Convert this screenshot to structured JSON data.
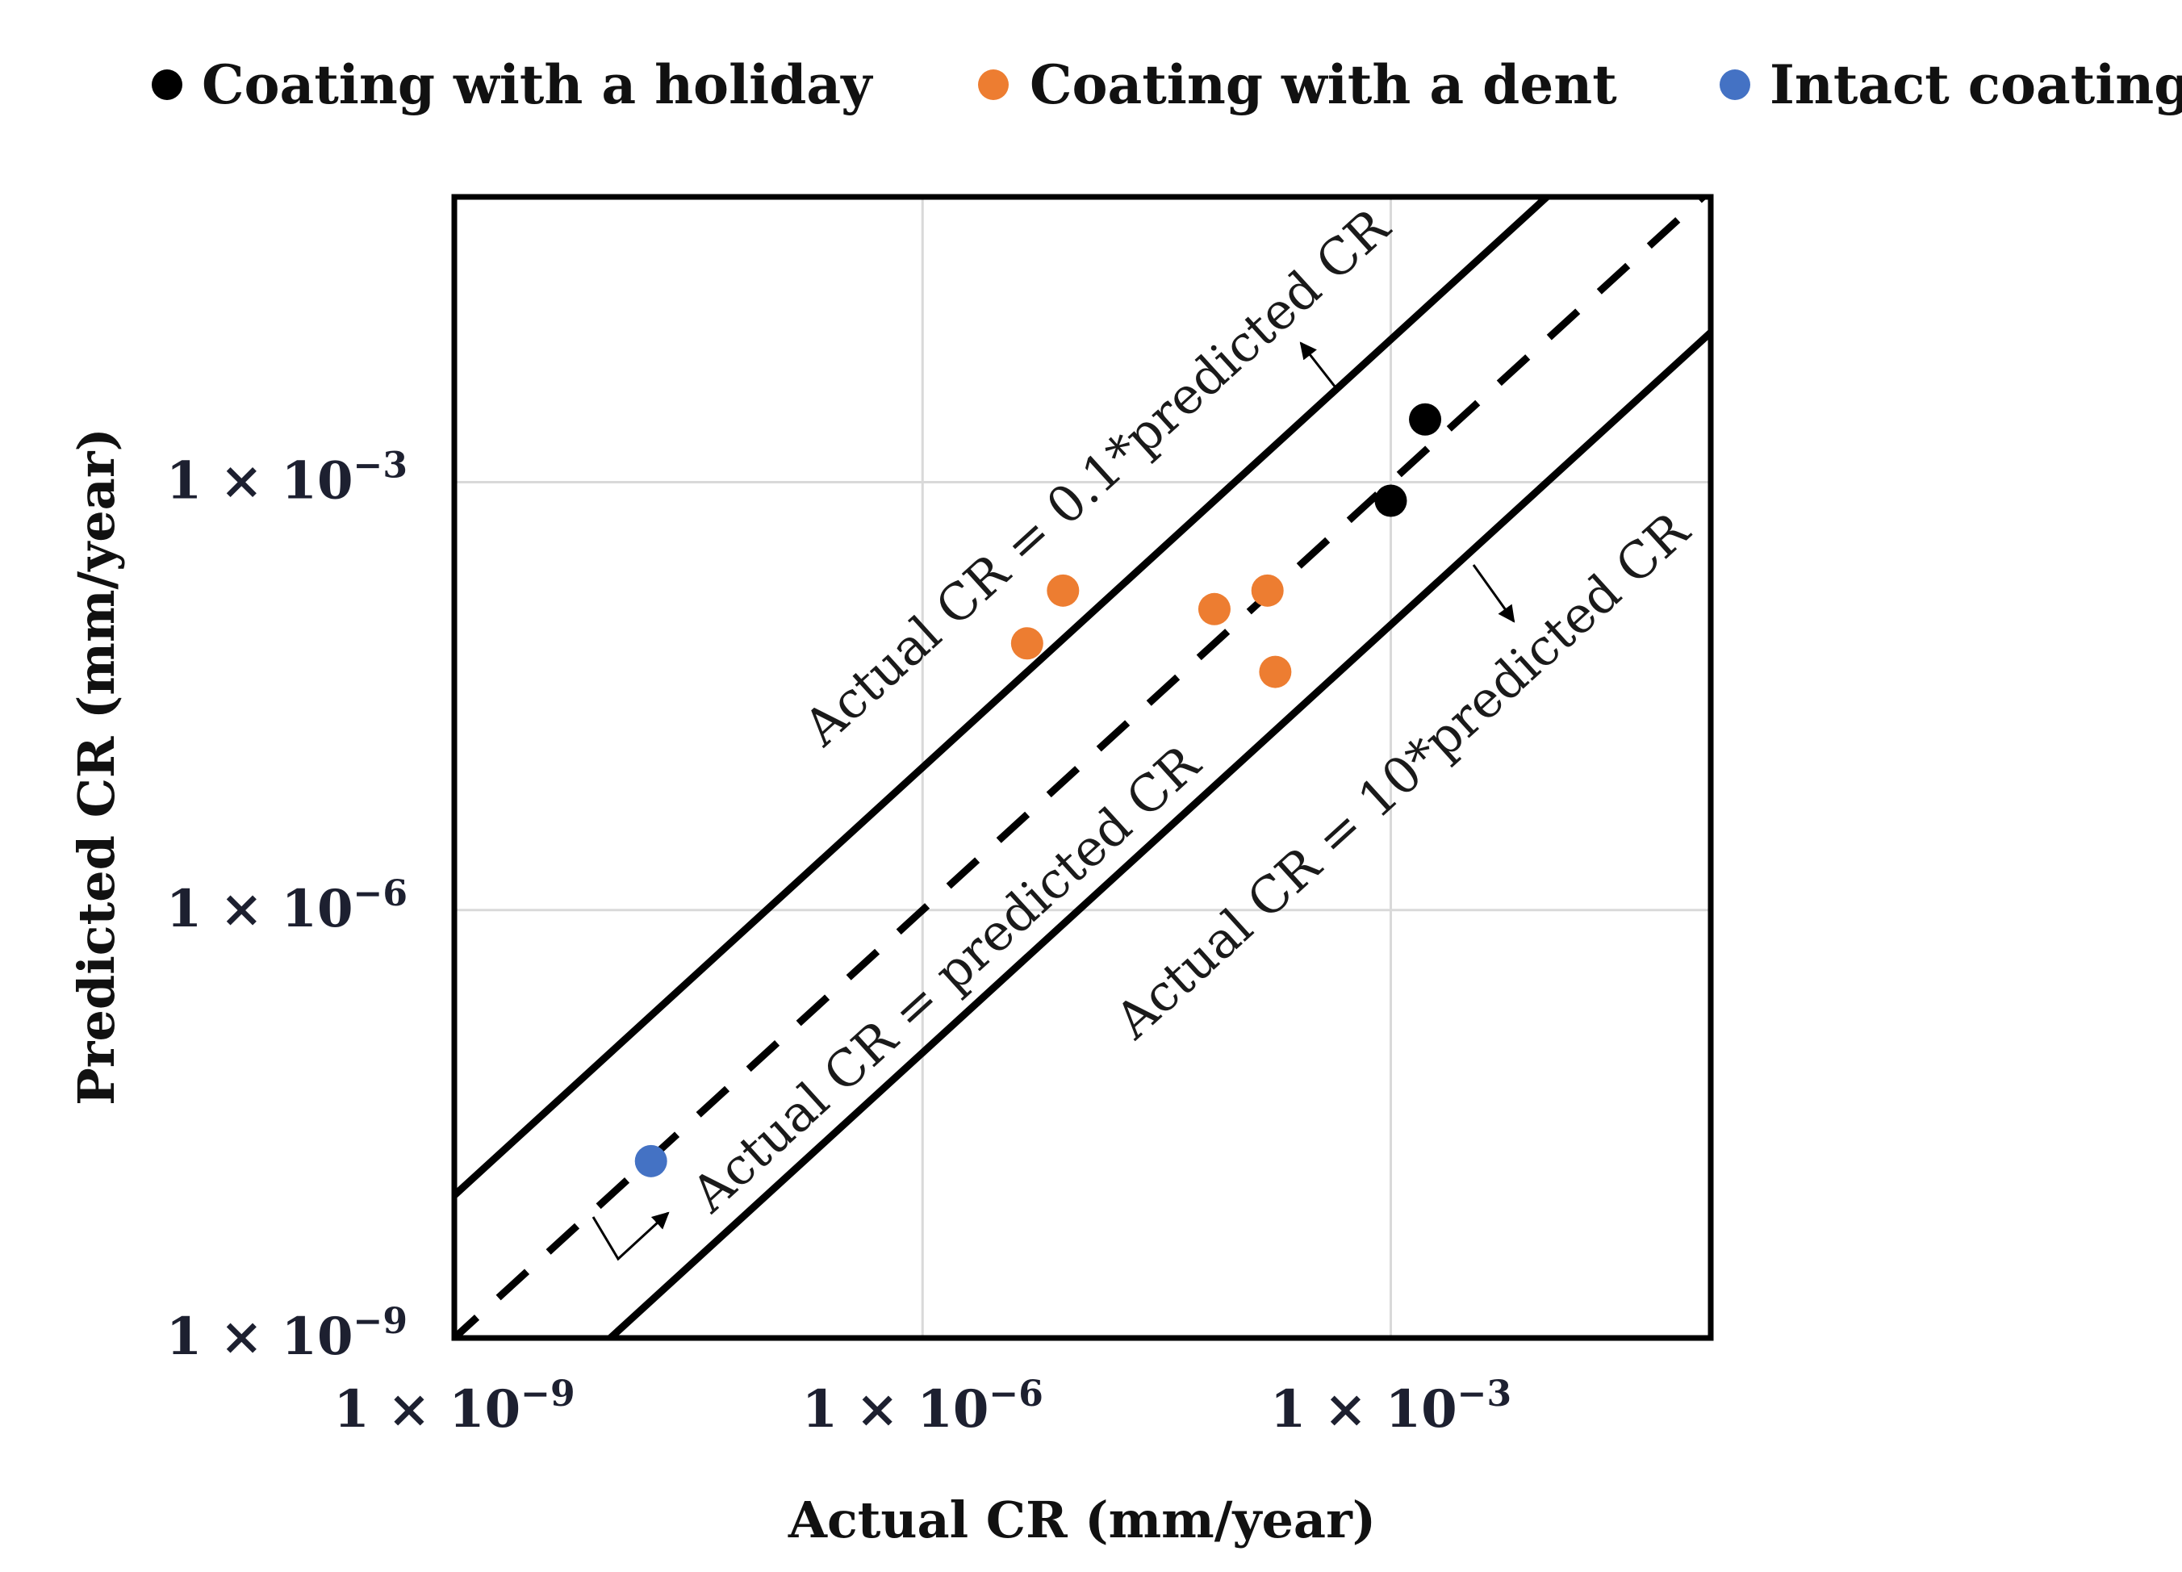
{
  "chart_data": {
    "type": "scatter",
    "title": "",
    "xlabel": "Actual CR (mm/year)",
    "ylabel": "Predicted CR (mm/year)",
    "xscale": "log",
    "yscale": "log",
    "xlim_exp": [
      -9,
      -0.95
    ],
    "ylim_exp": [
      -9,
      -1
    ],
    "xticks": [
      {
        "exp": -9,
        "mantissa": "1",
        "times": "×",
        "base": "10",
        "sup": "−9"
      },
      {
        "exp": -6,
        "mantissa": "1",
        "times": "×",
        "base": "10",
        "sup": "−6"
      },
      {
        "exp": -3,
        "mantissa": "1",
        "times": "×",
        "base": "10",
        "sup": "−3"
      }
    ],
    "yticks": [
      {
        "exp": -9,
        "mantissa": "1",
        "times": "×",
        "base": "10",
        "sup": "−9"
      },
      {
        "exp": -6,
        "mantissa": "1",
        "times": "×",
        "base": "10",
        "sup": "−6"
      },
      {
        "exp": -3,
        "mantissa": "1",
        "times": "×",
        "base": "10",
        "sup": "−3"
      }
    ],
    "grid": true,
    "legend_position": "top",
    "series": [
      {
        "name": "Coating with a holiday",
        "color": "#000000",
        "points": [
          {
            "x_exp": -3.0,
            "y_exp": -3.13
          },
          {
            "x_exp": -2.78,
            "y_exp": -2.56
          }
        ]
      },
      {
        "name": "Coating with a dent",
        "color": "#ed7d31",
        "points": [
          {
            "x_exp": -5.33,
            "y_exp": -4.13
          },
          {
            "x_exp": -5.1,
            "y_exp": -3.76
          },
          {
            "x_exp": -4.13,
            "y_exp": -3.89
          },
          {
            "x_exp": -3.79,
            "y_exp": -3.76
          },
          {
            "x_exp": -3.74,
            "y_exp": -4.33
          }
        ]
      },
      {
        "name": "Intact coating",
        "color": "#4472c4",
        "points": [
          {
            "x_exp": -7.74,
            "y_exp": -7.76
          }
        ]
      }
    ],
    "reference_lines": [
      {
        "name": "upper-bound",
        "label": "Actual CR = 0.1*predicted CR",
        "style": "solid",
        "offset_exp": 1
      },
      {
        "name": "parity",
        "label": "Actual CR = predicted CR",
        "style": "dashed",
        "offset_exp": 0
      },
      {
        "name": "lower-bound",
        "label": "Actual CR = 10*predicted CR",
        "style": "solid",
        "offset_exp": -1
      }
    ]
  }
}
